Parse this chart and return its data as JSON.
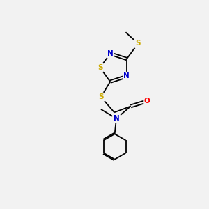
{
  "background_color": "#f2f2f2",
  "bond_color": "#000000",
  "N_color": "#0000cc",
  "S_color": "#ccaa00",
  "O_color": "#ff0000",
  "font_size_atoms": 7.5,
  "fig_width": 3.0,
  "fig_height": 3.0,
  "dpi": 100,
  "lw": 1.3,
  "xlim": [
    0,
    10
  ],
  "ylim": [
    0,
    10
  ]
}
